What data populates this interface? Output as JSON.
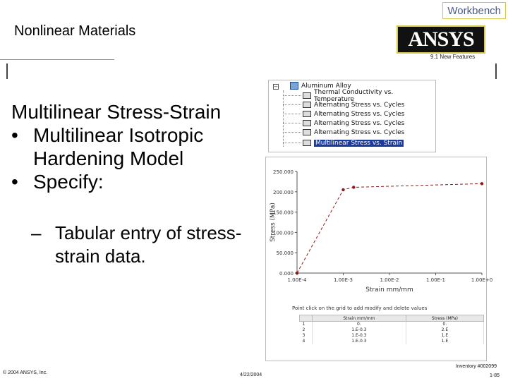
{
  "header": {
    "tab_label": "Workbench",
    "title": "Nonlinear Materials",
    "logo_text": "ANSYS",
    "logo_subtitle": "9.1 New Features"
  },
  "content": {
    "heading": "Multilinear Stress-Strain",
    "bullets": [
      {
        "marker": "•",
        "text": "Multilinear Isotropic Hardening Model"
      },
      {
        "marker": "•",
        "text": "Specify:"
      }
    ],
    "sub_bullets": [
      {
        "marker": "–",
        "text": "Tabular entry of stress-strain data."
      }
    ]
  },
  "tree": {
    "expander": "−",
    "root": "Aluminum Alloy",
    "items": [
      {
        "label": "Thermal Conductivity vs. Temperature",
        "selected": false
      },
      {
        "label": "Alternating Stress vs. Cycles",
        "selected": false
      },
      {
        "label": "Alternating Stress vs. Cycles",
        "selected": false
      },
      {
        "label": "Alternating Stress vs. Cycles",
        "selected": false
      },
      {
        "label": "Alternating Stress vs. Cycles",
        "selected": false
      },
      {
        "label": "Multilinear Stress vs. Strain",
        "selected": true
      }
    ]
  },
  "chart_data": {
    "type": "line",
    "xlabel": "Strain mm/mm",
    "ylabel": "Stress (MPa)",
    "x_scale": "log",
    "x_ticks": [
      "1.00E-4",
      "1.00E-3",
      "1.00E-2",
      "1.00E-1",
      "1.00E+0"
    ],
    "y_ticks": [
      "0.000",
      "50.000",
      "100.000",
      "150.000",
      "200.000",
      "250.000"
    ],
    "ylim": [
      0,
      250
    ],
    "grid": false,
    "series": [
      {
        "x": [
          0.0001,
          0.001,
          0.00168,
          1.0
        ],
        "y": [
          0,
          205,
          211,
          220
        ],
        "color": "#8b1a1a"
      }
    ]
  },
  "table": {
    "note": "Point click on the grid to add modify and delete values",
    "columns": [
      "Strain mm/mm",
      "Stress (MPa)"
    ],
    "rows": [
      {
        "n": "1",
        "strain": "0.",
        "stress": "0."
      },
      {
        "n": "2",
        "strain": "1.E-0.3",
        "stress": "2.E"
      },
      {
        "n": "3",
        "strain": "1.E-0.3",
        "stress": "1.E"
      },
      {
        "n": "4",
        "strain": "1.E-0.3",
        "stress": "1.E"
      }
    ]
  },
  "footer": {
    "copyright": "© 2004 ANSYS, Inc.",
    "date": "4/22/2004",
    "inventory": "Inventory #002099",
    "page": "1-85"
  }
}
